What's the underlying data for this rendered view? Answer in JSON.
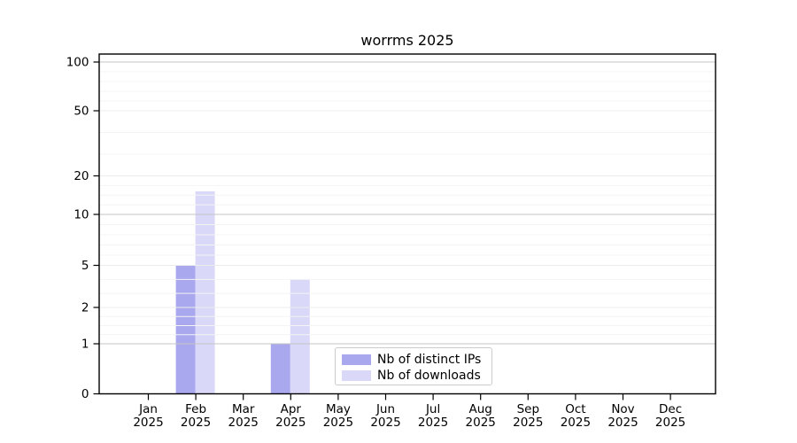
{
  "chart_data": {
    "type": "bar",
    "title": "worrms 2025",
    "categories": [
      "Jan",
      "Feb",
      "Mar",
      "Apr",
      "May",
      "Jun",
      "Jul",
      "Aug",
      "Sep",
      "Oct",
      "Nov",
      "Dec"
    ],
    "category_year": "2025",
    "series": [
      {
        "name": "Nb of distinct IPs",
        "color": "#a9a7ee",
        "values": [
          0,
          5,
          0,
          1,
          0,
          0,
          0,
          0,
          0,
          0,
          0,
          0
        ]
      },
      {
        "name": "Nb of downloads",
        "color": "#d9d8f8",
        "values": [
          0,
          16,
          0,
          4,
          0,
          0,
          0,
          0,
          0,
          0,
          0,
          0
        ]
      }
    ],
    "y_axis": {
      "ticks": [
        0,
        1,
        2,
        5,
        10,
        20,
        50,
        100
      ],
      "minor_ticks": [
        1.25,
        1.5,
        1.75,
        3,
        4,
        6,
        7,
        8,
        9,
        12.5,
        15,
        17.5,
        30,
        40,
        60,
        70,
        80,
        90
      ],
      "scale": "pseudo-log",
      "range": [
        0,
        100
      ]
    },
    "legend": {
      "position": "lower-center",
      "entries": [
        "Nb of distinct IPs",
        "Nb of downloads"
      ]
    },
    "grid": true,
    "colors": {
      "grid_major_power10": "#c4c4c4",
      "grid_major": "#ececec",
      "grid_minor": "#f4f4f4",
      "axis": "#000000",
      "text": "#000000",
      "background": "#ffffff"
    }
  }
}
